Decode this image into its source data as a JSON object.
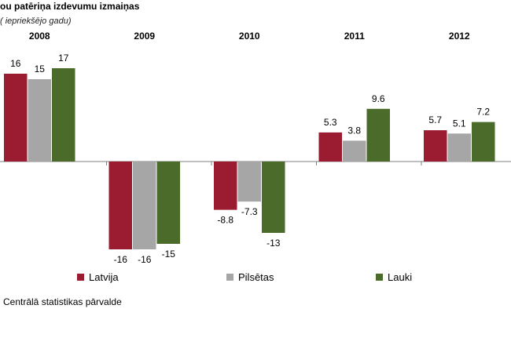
{
  "title": "ou patēriņa izdevumu izmaiņas",
  "subtitle": "( iepriekšējo gadu)",
  "source": "Centrālā statistikas pārvalde",
  "chart_data": {
    "type": "bar",
    "categories": [
      "2008",
      "2009",
      "2010",
      "2011",
      "2012"
    ],
    "series": [
      {
        "name": "Latvija",
        "color": "#9b1b30",
        "values": [
          16,
          -16,
          -8.8,
          5.3,
          5.7
        ],
        "labels": [
          "16",
          "-16",
          "-8.8",
          "5.3",
          "5.7"
        ]
      },
      {
        "name": "Pilsētas",
        "color": "#a6a6a6",
        "values": [
          15,
          -16,
          -7.3,
          3.8,
          5.1
        ],
        "labels": [
          "15",
          "-16",
          "-7.3",
          "3.8",
          "5.1"
        ]
      },
      {
        "name": "Lauki",
        "color": "#4a6b2a",
        "values": [
          17,
          -15,
          -13,
          9.6,
          7.2
        ],
        "labels": [
          "17",
          "-15",
          "-13",
          "9.6",
          "7.2"
        ]
      }
    ],
    "ylim": [
      -16,
      17
    ],
    "legend_position": "bottom",
    "grid": false
  }
}
